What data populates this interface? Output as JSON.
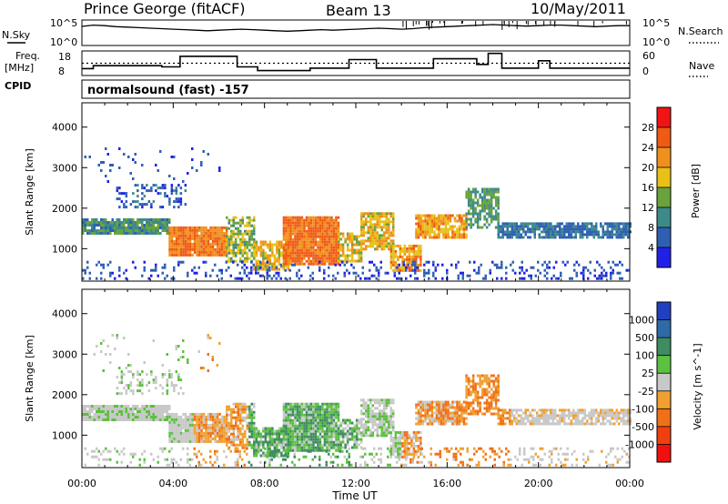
{
  "header": {
    "station": "Prince George (fitACF)",
    "beam": "Beam 13",
    "date": "10/May/2011"
  },
  "panels": {
    "nsky_label": "N.Sky",
    "nsearch_label": "N.Search",
    "count_ticks": [
      "10^5",
      "10^0"
    ],
    "freq_label_1": "Freq.",
    "freq_label_2": "[MHz]",
    "freq_ticks": [
      "18",
      "8"
    ],
    "nave_label": "Nave",
    "nave_ticks": [
      "60",
      "0"
    ],
    "cpid_label": "CPID",
    "cpid_text": "normalsound (fast) -157"
  },
  "chart_data": [
    {
      "type": "line",
      "name": "sky-noise",
      "x_hours": [
        0,
        0.5,
        1,
        1.5,
        2,
        2.5,
        3,
        3.5,
        4,
        4.5,
        5,
        5.5,
        6,
        6.5,
        7,
        7.5,
        8,
        8.5,
        9,
        9.5,
        10,
        10.5,
        11,
        11.5,
        12,
        12.5,
        13,
        13.5,
        14,
        14.5,
        15,
        15.5,
        16,
        16.5,
        17,
        17.5,
        18,
        18.5,
        19,
        19.5,
        20,
        20.5,
        21,
        21.5,
        22,
        22.5,
        23,
        23.5,
        24
      ],
      "y_fraction_of_range": [
        0.75,
        0.8,
        0.78,
        0.74,
        0.72,
        0.7,
        0.68,
        0.66,
        0.64,
        0.62,
        0.6,
        0.58,
        0.6,
        0.62,
        0.64,
        0.62,
        0.6,
        0.58,
        0.56,
        0.58,
        0.6,
        0.62,
        0.6,
        0.62,
        0.64,
        0.66,
        0.68,
        0.66,
        0.64,
        0.66,
        0.7,
        0.72,
        0.74,
        0.76,
        0.78,
        0.8,
        0.82,
        0.8,
        0.78,
        0.76,
        0.78,
        0.8,
        0.8,
        0.78,
        0.76,
        0.74,
        0.76,
        0.78,
        0.78
      ]
    },
    {
      "type": "line",
      "name": "frequency-and-nave",
      "freq_steps": [
        {
          "t0": 0,
          "t1": 0.5,
          "mhz": 10.8
        },
        {
          "t0": 0.5,
          "t1": 3.5,
          "mhz": 12.0
        },
        {
          "t0": 3.5,
          "t1": 4.3,
          "mhz": 11.5
        },
        {
          "t0": 4.3,
          "t1": 6.8,
          "mhz": 15.8
        },
        {
          "t0": 6.8,
          "t1": 7.7,
          "mhz": 11.5
        },
        {
          "t0": 7.7,
          "t1": 10.0,
          "mhz": 10.0
        },
        {
          "t0": 10.0,
          "t1": 11.7,
          "mhz": 11.0
        },
        {
          "t0": 11.7,
          "t1": 12.9,
          "mhz": 14.5
        },
        {
          "t0": 12.9,
          "t1": 15.4,
          "mhz": 11.0
        },
        {
          "t0": 15.4,
          "t1": 17.3,
          "mhz": 14.8
        },
        {
          "t0": 17.3,
          "t1": 17.8,
          "mhz": 12.5
        },
        {
          "t0": 17.8,
          "t1": 18.4,
          "mhz": 17.0
        },
        {
          "t0": 18.4,
          "t1": 20.0,
          "mhz": 11.0
        },
        {
          "t0": 20.0,
          "t1": 20.5,
          "mhz": 14.0
        },
        {
          "t0": 20.5,
          "t1": 24.0,
          "mhz": 11.0
        }
      ],
      "nave_value": 30
    },
    {
      "type": "heatmap",
      "name": "power",
      "x_ticks": [
        "00:00",
        "04:00",
        "08:00",
        "12:00",
        "16:00",
        "20:00",
        "00:00"
      ],
      "xlim": [
        0,
        24
      ],
      "ylabel": "Slant Range [km]",
      "y_ticks": [
        1000,
        2000,
        3000,
        4000
      ],
      "ylim": [
        200,
        4600
      ],
      "colorbar": {
        "label": "Power [dB]",
        "tick_labels": [
          "4",
          "8",
          "12",
          "16",
          "20",
          "24",
          "28"
        ],
        "colors": [
          "#2020e8",
          "#2f5fb4",
          "#3d8a8a",
          "#6aa33b",
          "#e8c018",
          "#f0901c",
          "#f05a14",
          "#f01414"
        ]
      }
    },
    {
      "type": "heatmap",
      "name": "velocity",
      "x_ticks": [
        "00:00",
        "04:00",
        "08:00",
        "12:00",
        "16:00",
        "20:00",
        "00:00"
      ],
      "xlim": [
        0,
        24
      ],
      "xlabel": "Time UT",
      "ylabel": "Slant Range [km]",
      "y_ticks": [
        1000,
        2000,
        3000,
        4000
      ],
      "ylim": [
        200,
        4600
      ],
      "colorbar": {
        "label": "Velocity [m s^-1]",
        "tick_labels": [
          "1000",
          "500",
          "100",
          "25",
          "-25",
          "-100",
          "-500",
          "-1000"
        ],
        "colors": [
          "#2040c0",
          "#2e6aa8",
          "#3e8c62",
          "#5cc040",
          "#c8c8c8",
          "#f0a030",
          "#f07018",
          "#f04010",
          "#f01010"
        ]
      }
    }
  ]
}
